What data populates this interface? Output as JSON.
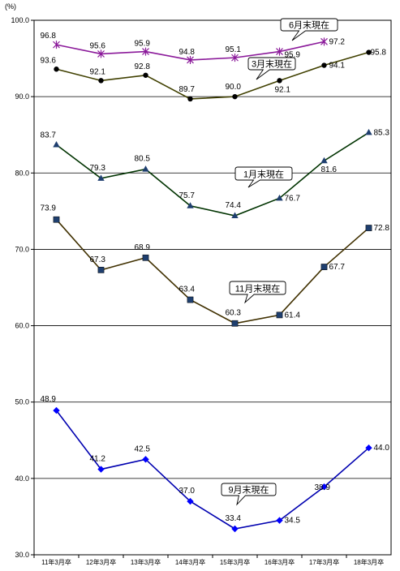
{
  "chart_data": {
    "type": "line",
    "unit_label": "(%)",
    "x": [
      "11年3月卒",
      "12年3月卒",
      "13年3月卒",
      "14年3月卒",
      "15年3月卒",
      "16年3月卒",
      "17年3月卒",
      "18年3月卒"
    ],
    "y_ticks": [
      "100.0",
      "90.0",
      "80.0",
      "70.0",
      "60.0",
      "50.0",
      "40.0",
      "30.0"
    ],
    "ylim": [
      30,
      100
    ],
    "grid": true,
    "series": [
      {
        "name": "6月末現在",
        "color": "#8B1A9A",
        "marker": "star",
        "values": [
          96.8,
          95.6,
          95.9,
          94.8,
          95.1,
          95.9,
          97.2,
          null
        ],
        "labels": [
          "96.8",
          "95.6",
          "95.9",
          "94.8",
          "95.1",
          "95.9",
          "97.2",
          ""
        ]
      },
      {
        "name": "3月末現在",
        "color": "#404000",
        "marker": "circle",
        "values": [
          93.6,
          92.1,
          92.8,
          89.7,
          90.0,
          92.1,
          94.1,
          95.8
        ],
        "labels": [
          "93.6",
          "92.1",
          "92.8",
          "89.7",
          "90.0",
          "92.1",
          "94.1",
          "95.8"
        ]
      },
      {
        "name": "1月末現在",
        "color": "#003300",
        "marker": "triangle",
        "values": [
          83.7,
          79.3,
          80.5,
          75.7,
          74.4,
          76.7,
          81.6,
          85.3
        ],
        "labels": [
          "83.7",
          "79.3",
          "80.5",
          "75.7",
          "74.4",
          "76.7",
          "81.6",
          "85.3"
        ]
      },
      {
        "name": "11月末現在",
        "color": "#403000",
        "marker": "square",
        "values": [
          73.9,
          67.3,
          68.9,
          63.4,
          60.3,
          61.4,
          67.7,
          72.8
        ],
        "labels": [
          "73.9",
          "67.3",
          "68.9",
          "63.4",
          "60.3",
          "61.4",
          "67.7",
          "72.8"
        ]
      },
      {
        "name": "9月末現在",
        "color": "#0000B0",
        "marker": "diamond",
        "values": [
          48.9,
          41.2,
          42.5,
          37.0,
          33.4,
          34.5,
          38.9,
          44.0
        ],
        "labels": [
          "48.9",
          "41.2",
          "42.5",
          "37.0",
          "33.4",
          "34.5",
          "38.9",
          "44.0"
        ]
      }
    ]
  }
}
